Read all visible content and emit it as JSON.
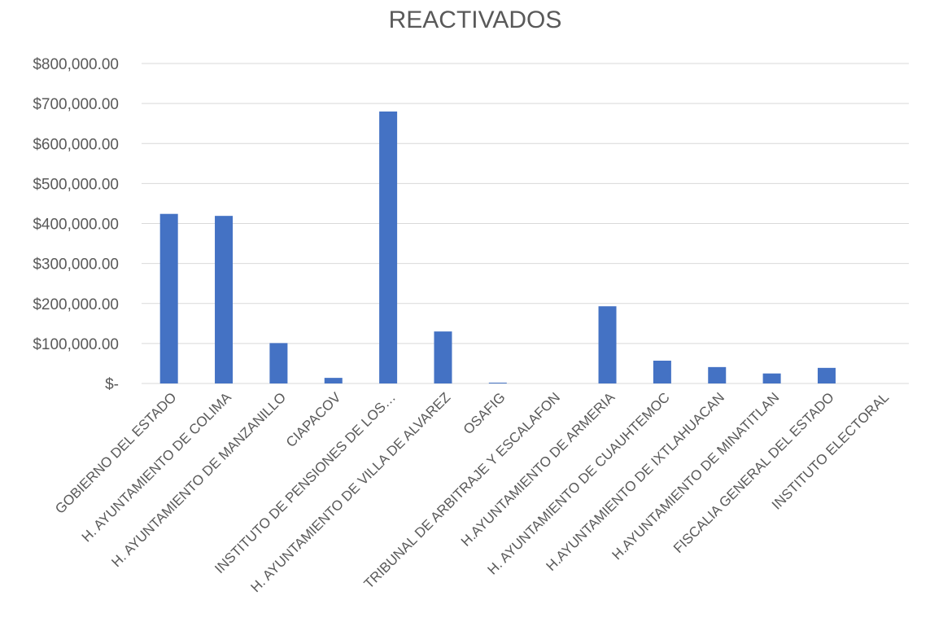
{
  "chart_data": {
    "type": "bar",
    "title": "REACTIVADOS",
    "xlabel": "",
    "ylabel": "",
    "ylim": [
      0,
      800000
    ],
    "yticks": [
      0,
      100000,
      200000,
      300000,
      400000,
      500000,
      600000,
      700000,
      800000
    ],
    "ytick_labels": [
      "$-",
      "$100,000.00",
      "$200,000.00",
      "$300,000.00",
      "$400,000.00",
      "$500,000.00",
      "$600,000.00",
      "$700,000.00",
      "$800,000.00"
    ],
    "grid": true,
    "legend": "none",
    "bar_color": "#4472C4",
    "categories": [
      "GOBIERNO DEL ESTADO",
      "H. AYUNTAMIENTO DE COLIMA",
      "H. AYUNTAMIENTO DE MANZANILLO",
      "CIAPACOV",
      "INSTITUTO DE PENSIONES DE LOS…",
      "H. AYUNTAMIENTO DE VILLA DE ALVAREZ",
      "OSAFIG",
      "TRIBUNAL DE ARBITRAJE Y ESCALAFON",
      "H.AYUNTAMIENTO DE ARMERIA",
      "H. AYUNTAMIENTO DE CUAUHTEMOC",
      "H.AYUNTAMIENTO DE IXTLAHUACAN",
      "H.AYUNTAMIENTO DE MINATITLAN",
      "FISCALIA GENERAL DEL ESTADO",
      "INSTITUTO ELECTORAL"
    ],
    "values": [
      424000,
      419000,
      101000,
      14000,
      680000,
      130000,
      2000,
      0,
      193000,
      57000,
      41000,
      25000,
      39000,
      0
    ]
  }
}
